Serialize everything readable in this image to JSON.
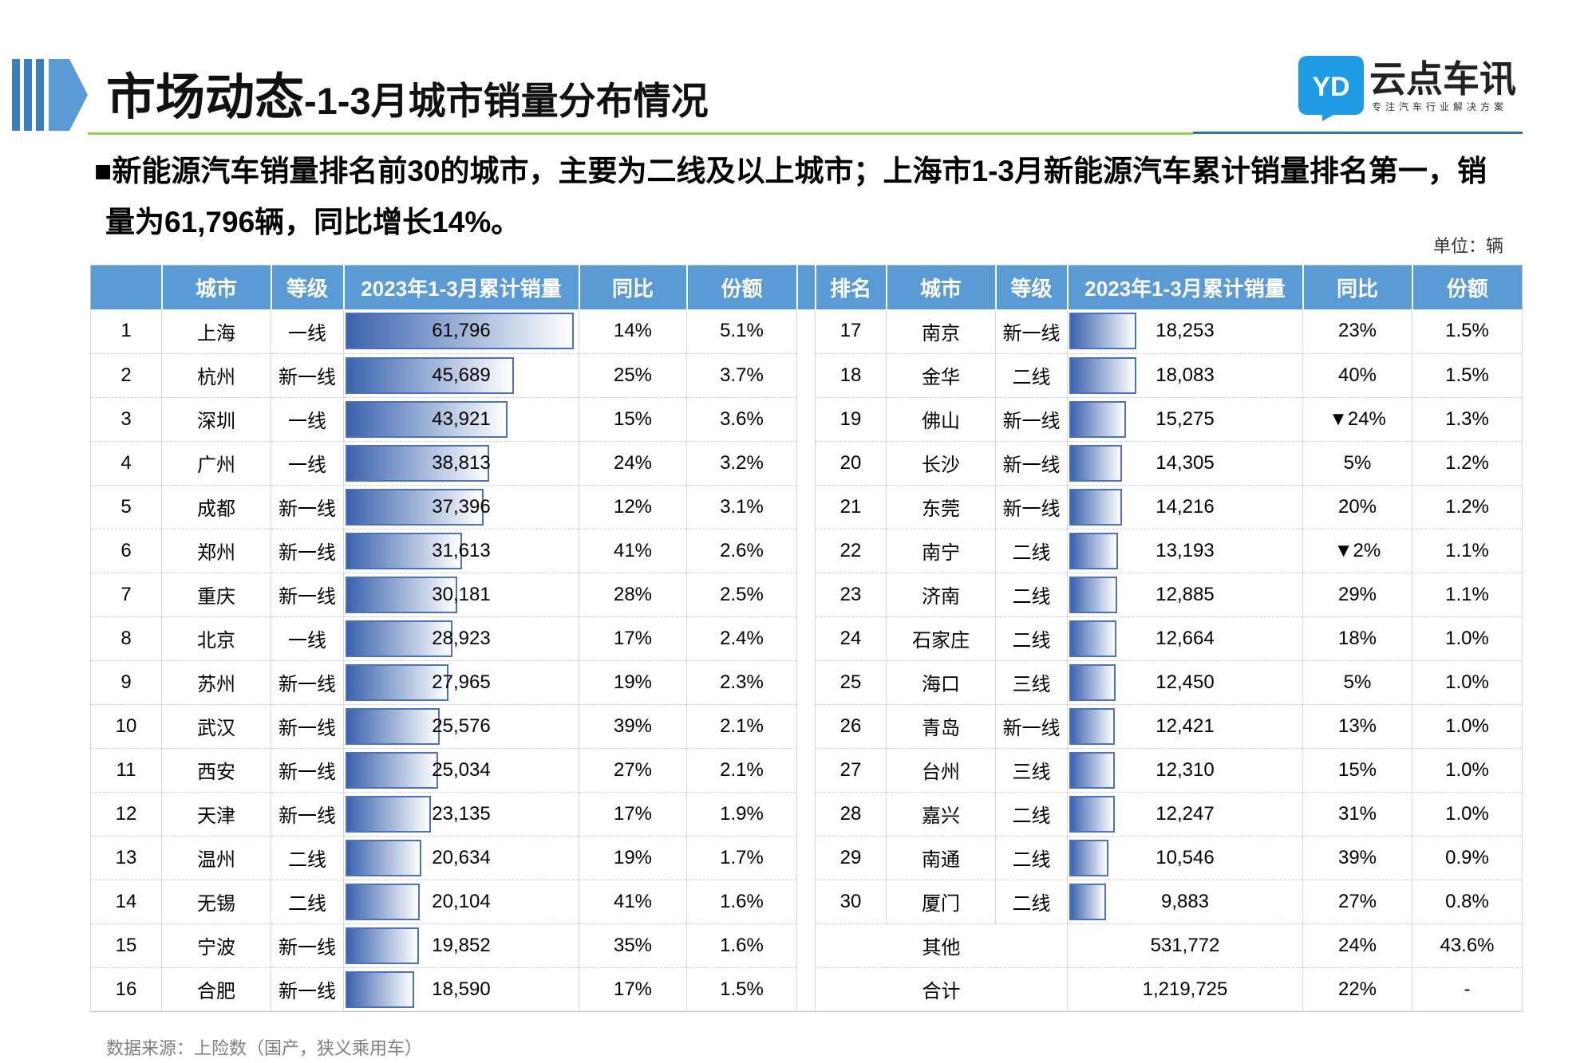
{
  "header": {
    "title_main": "市场动态",
    "title_sub": "-1-3月城市销量分布情况"
  },
  "logo": {
    "mark": "YD",
    "name": "云点车讯",
    "tagline": "专注汽车行业解决方案"
  },
  "colors": {
    "header_blue": "#5B9BD5",
    "title_rule_green": "#92D050",
    "title_rule_blue": "#2E75B6",
    "negative_change": "#FF0000",
    "bar_fill": "#3A63AE",
    "bar_border": "#4A72BF",
    "logo_blue": "#1E9BE3",
    "source_text": "#7F7F7F"
  },
  "summary": {
    "lines": [
      "■新能源汽车销量排名前30的城市，主要为二线及以上城市；上海市1-3月新能源汽车累计销量排名第一，销",
      "量为61,796辆，同比增长14%。"
    ]
  },
  "unit_label": "单位：辆",
  "table": {
    "columns_left": [
      "",
      "城市",
      "等级",
      "2023年1-3月累计销量",
      "同比",
      "份额"
    ],
    "columns_right": [
      "排名",
      "城市",
      "等级",
      "2023年1-3月累计销量",
      "同比",
      "份额"
    ],
    "left_rows": [
      {
        "rank": "1",
        "city": "上海",
        "tier": "一线",
        "sales": "61,796",
        "yoy": "14%",
        "share": "5.1%"
      },
      {
        "rank": "2",
        "city": "杭州",
        "tier": "新一线",
        "sales": "45,689",
        "yoy": "25%",
        "share": "3.7%"
      },
      {
        "rank": "3",
        "city": "深圳",
        "tier": "一线",
        "sales": "43,921",
        "yoy": "15%",
        "share": "3.6%"
      },
      {
        "rank": "4",
        "city": "广州",
        "tier": "一线",
        "sales": "38,813",
        "yoy": "24%",
        "share": "3.2%"
      },
      {
        "rank": "5",
        "city": "成都",
        "tier": "新一线",
        "sales": "37,396",
        "yoy": "12%",
        "share": "3.1%"
      },
      {
        "rank": "6",
        "city": "郑州",
        "tier": "新一线",
        "sales": "31,613",
        "yoy": "41%",
        "share": "2.6%"
      },
      {
        "rank": "7",
        "city": "重庆",
        "tier": "新一线",
        "sales": "30,181",
        "yoy": "28%",
        "share": "2.5%"
      },
      {
        "rank": "8",
        "city": "北京",
        "tier": "一线",
        "sales": "28,923",
        "yoy": "17%",
        "share": "2.4%"
      },
      {
        "rank": "9",
        "city": "苏州",
        "tier": "新一线",
        "sales": "27,965",
        "yoy": "19%",
        "share": "2.3%"
      },
      {
        "rank": "10",
        "city": "武汉",
        "tier": "新一线",
        "sales": "25,576",
        "yoy": "39%",
        "share": "2.1%"
      },
      {
        "rank": "11",
        "city": "西安",
        "tier": "新一线",
        "sales": "25,034",
        "yoy": "27%",
        "share": "2.1%"
      },
      {
        "rank": "12",
        "city": "天津",
        "tier": "新一线",
        "sales": "23,135",
        "yoy": "17%",
        "share": "1.9%"
      },
      {
        "rank": "13",
        "city": "温州",
        "tier": "二线",
        "sales": "20,634",
        "yoy": "19%",
        "share": "1.7%"
      },
      {
        "rank": "14",
        "city": "无锡",
        "tier": "二线",
        "sales": "20,104",
        "yoy": "41%",
        "share": "1.6%"
      },
      {
        "rank": "15",
        "city": "宁波",
        "tier": "新一线",
        "sales": "19,852",
        "yoy": "35%",
        "share": "1.6%"
      },
      {
        "rank": "16",
        "city": "合肥",
        "tier": "新一线",
        "sales": "18,590",
        "yoy": "17%",
        "share": "1.5%"
      }
    ],
    "right_rows": [
      {
        "rank": "17",
        "city": "南京",
        "tier": "新一线",
        "sales": "18,253",
        "yoy": "23%",
        "share": "1.5%"
      },
      {
        "rank": "18",
        "city": "金华",
        "tier": "二线",
        "sales": "18,083",
        "yoy": "40%",
        "share": "1.5%"
      },
      {
        "rank": "19",
        "city": "佛山",
        "tier": "新一线",
        "sales": "15,275",
        "yoy": "▼24%",
        "share": "1.3%"
      },
      {
        "rank": "20",
        "city": "长沙",
        "tier": "新一线",
        "sales": "14,305",
        "yoy": "5%",
        "share": "1.2%"
      },
      {
        "rank": "21",
        "city": "东莞",
        "tier": "新一线",
        "sales": "14,216",
        "yoy": "20%",
        "share": "1.2%"
      },
      {
        "rank": "22",
        "city": "南宁",
        "tier": "二线",
        "sales": "13,193",
        "yoy": "▼2%",
        "share": "1.1%"
      },
      {
        "rank": "23",
        "city": "济南",
        "tier": "二线",
        "sales": "12,885",
        "yoy": "29%",
        "share": "1.1%"
      },
      {
        "rank": "24",
        "city": "石家庄",
        "tier": "二线",
        "sales": "12,664",
        "yoy": "18%",
        "share": "1.0%"
      },
      {
        "rank": "25",
        "city": "海口",
        "tier": "三线",
        "sales": "12,450",
        "yoy": "5%",
        "share": "1.0%"
      },
      {
        "rank": "26",
        "city": "青岛",
        "tier": "新一线",
        "sales": "12,421",
        "yoy": "13%",
        "share": "1.0%"
      },
      {
        "rank": "27",
        "city": "台州",
        "tier": "三线",
        "sales": "12,310",
        "yoy": "15%",
        "share": "1.0%"
      },
      {
        "rank": "28",
        "city": "嘉兴",
        "tier": "二线",
        "sales": "12,247",
        "yoy": "31%",
        "share": "1.0%"
      },
      {
        "rank": "29",
        "city": "南通",
        "tier": "二线",
        "sales": "10,546",
        "yoy": "39%",
        "share": "0.9%"
      },
      {
        "rank": "30",
        "city": "厦门",
        "tier": "二线",
        "sales": "9,883",
        "yoy": "27%",
        "share": "0.8%"
      }
    ],
    "other": {
      "label": "其他",
      "sales": "531,772",
      "yoy": "24%",
      "share": "43.6%"
    },
    "total": {
      "label": "合计",
      "sales": "1,219,725",
      "yoy": "22%",
      "share": "-"
    }
  },
  "source": "数据来源：上险数（国产，狭义乘用车）"
}
